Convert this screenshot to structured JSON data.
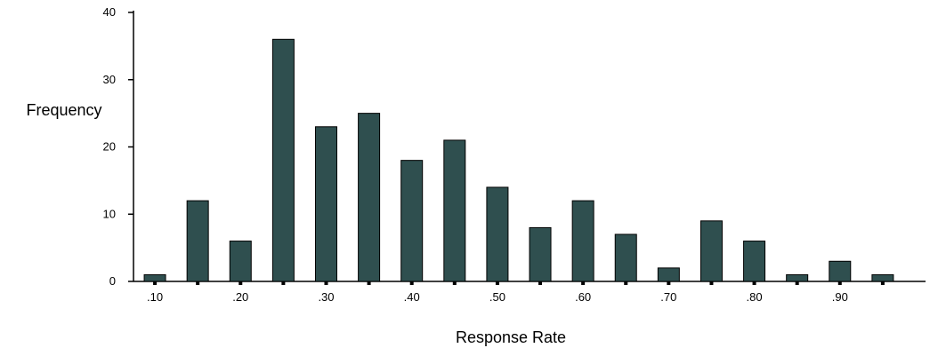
{
  "chart_data": {
    "type": "bar",
    "title": "",
    "xlabel": "Response Rate",
    "ylabel": "Frequency",
    "ylim": [
      0,
      40
    ],
    "yticks": [
      0,
      10,
      20,
      30,
      40
    ],
    "xlim": [
      0.075,
      1.0
    ],
    "xtick_labels": [
      ".10",
      ".20",
      ".30",
      ".40",
      ".50",
      ".60",
      ".70",
      ".80",
      ".90"
    ],
    "x": [
      0.1,
      0.15,
      0.2,
      0.25,
      0.3,
      0.35,
      0.4,
      0.45,
      0.5,
      0.55,
      0.6,
      0.65,
      0.7,
      0.75,
      0.8,
      0.85,
      0.9,
      0.95
    ],
    "values": [
      1,
      12,
      6,
      36,
      23,
      25,
      18,
      21,
      14,
      8,
      12,
      7,
      2,
      9,
      6,
      1,
      3,
      1
    ],
    "grid": false,
    "legend": "none",
    "bar_color": "#2f4f4f"
  }
}
